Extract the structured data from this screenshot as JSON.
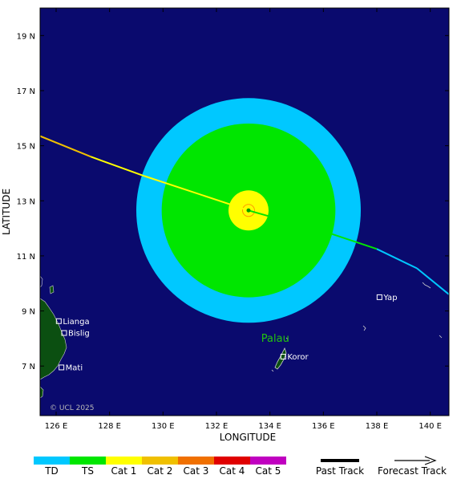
{
  "map": {
    "lon_range": [
      125.4,
      140.7
    ],
    "lat_range": [
      5.2,
      20.0
    ],
    "x_ticks": [
      {
        "value": 126,
        "label": "126 E"
      },
      {
        "value": 128,
        "label": "128 E"
      },
      {
        "value": 130,
        "label": "130 E"
      },
      {
        "value": 132,
        "label": "132 E"
      },
      {
        "value": 134,
        "label": "134 E"
      },
      {
        "value": 136,
        "label": "136 E"
      },
      {
        "value": 138,
        "label": "138 E"
      },
      {
        "value": 140,
        "label": "140 E"
      }
    ],
    "y_ticks": [
      {
        "value": 7,
        "label": "7 N"
      },
      {
        "value": 9,
        "label": "9 N"
      },
      {
        "value": 11,
        "label": "11 N"
      },
      {
        "value": 13,
        "label": "13 N"
      },
      {
        "value": 15,
        "label": "15 N"
      },
      {
        "value": 17,
        "label": "17 N"
      },
      {
        "value": 19,
        "label": "19 N"
      }
    ],
    "x_axis_title": "LONGITUDE",
    "y_axis_title": "LATITUDE",
    "copyright": "© UCL 2025",
    "region_label": {
      "text": "Palau",
      "lon": 134.2,
      "lat": 8.0
    },
    "colors": {
      "ocean": "#0a0a6e",
      "land": "#0b4f11",
      "ts_wind": "#00e600",
      "td_wind": "#00c8ff",
      "cat1_wind": "#ffff00"
    },
    "places": [
      {
        "name": "Lianga",
        "lon": 126.1,
        "lat": 8.63
      },
      {
        "name": "Bislig",
        "lon": 126.3,
        "lat": 8.2
      },
      {
        "name": "Mati",
        "lon": 126.2,
        "lat": 6.95
      },
      {
        "name": "Yap",
        "lon": 138.1,
        "lat": 9.5
      },
      {
        "name": "Koror",
        "lon": 134.5,
        "lat": 7.34
      }
    ],
    "storm": {
      "center": {
        "lon": 133.2,
        "lat": 12.65
      },
      "td_radius_deg": 4.2,
      "ts_radius_deg": 3.25,
      "cat1_radius_deg": 0.75
    },
    "track": [
      {
        "lon": 125.4,
        "lat": 15.35,
        "category": "Cat 3"
      },
      {
        "lon": 127.3,
        "lat": 14.6,
        "category": "Cat 2"
      },
      {
        "lon": 129.3,
        "lat": 13.9,
        "category": "Cat 1"
      },
      {
        "lon": 133.2,
        "lat": 12.65,
        "category": "Cat 1"
      },
      {
        "lon": 136.3,
        "lat": 11.8,
        "category": "TS"
      },
      {
        "lon": 138.0,
        "lat": 11.25,
        "category": "TS"
      },
      {
        "lon": 139.5,
        "lat": 10.55,
        "category": "TD"
      },
      {
        "lon": 140.7,
        "lat": 9.6,
        "category": "TD"
      }
    ]
  },
  "legend": {
    "categories": [
      {
        "label": "TD",
        "color": "#00c8ff"
      },
      {
        "label": "TS",
        "color": "#00e600"
      },
      {
        "label": "Cat 1",
        "color": "#ffff00"
      },
      {
        "label": "Cat 2",
        "color": "#f0c000"
      },
      {
        "label": "Cat 3",
        "color": "#f07000"
      },
      {
        "label": "Cat 4",
        "color": "#e00000"
      },
      {
        "label": "Cat 5",
        "color": "#c000c0"
      }
    ],
    "past_track_label": "Past Track",
    "forecast_track_label": "Forecast Track"
  }
}
